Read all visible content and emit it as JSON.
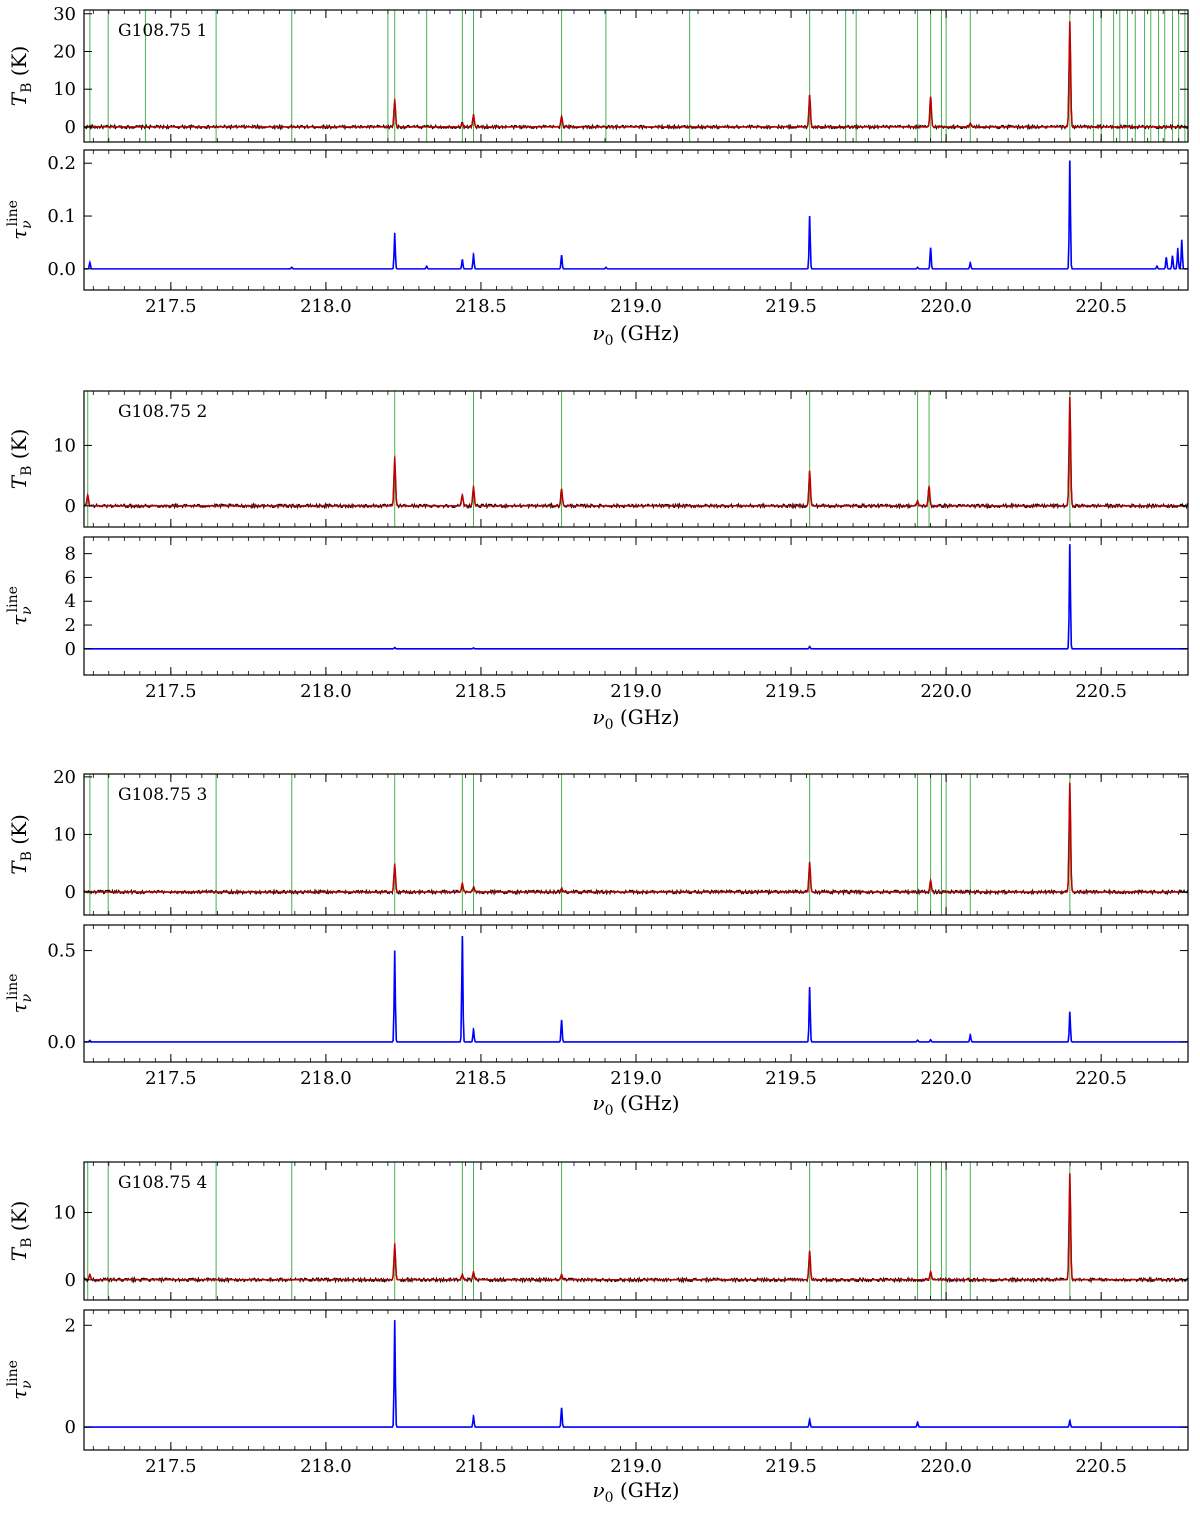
{
  "figure": {
    "x_axis_label": "ν0 (GHz)",
    "x_ticks": [
      217.5,
      218.0,
      218.5,
      219.0,
      219.5,
      220.0,
      220.5
    ],
    "x_tick_labels": [
      "217.5",
      "218.0",
      "218.5",
      "219.0",
      "219.5",
      "220.0",
      "220.5"
    ],
    "xlim": [
      217.22,
      220.78
    ],
    "tb_ylabel": "TB (K)",
    "tau_ylabel": "τν line",
    "colors": {
      "observed": "#000000",
      "model": "#c00000",
      "tau": "#0000ff",
      "line_marker": "#4caf50"
    }
  },
  "chart_data": [
    {
      "type": "line",
      "panel_label": "G108.75 1",
      "tb": {
        "ylim": [
          -4,
          31
        ],
        "y_ticks": [
          0,
          10,
          20,
          30
        ],
        "y_tick_labels": [
          "0",
          "10",
          "20",
          "30"
        ],
        "peaks": [
          [
            218.222,
            7.2
          ],
          [
            218.44,
            1.0
          ],
          [
            218.476,
            3.2
          ],
          [
            218.76,
            2.8
          ],
          [
            219.56,
            8.5
          ],
          [
            219.95,
            8.0
          ],
          [
            220.078,
            1.0
          ],
          [
            220.399,
            28.0
          ]
        ]
      },
      "tau": {
        "ylim": [
          -0.04,
          0.225
        ],
        "y_ticks": [
          0.0,
          0.1,
          0.2
        ],
        "y_tick_labels": [
          "0.0",
          "0.1",
          "0.2"
        ],
        "peaks": [
          [
            217.239,
            0.012
          ],
          [
            217.89,
            0.003
          ],
          [
            218.222,
            0.068
          ],
          [
            218.325,
            0.005
          ],
          [
            218.44,
            0.018
          ],
          [
            218.476,
            0.028
          ],
          [
            218.76,
            0.026
          ],
          [
            218.903,
            0.003
          ],
          [
            219.56,
            0.1
          ],
          [
            219.908,
            0.003
          ],
          [
            219.95,
            0.04
          ],
          [
            220.078,
            0.012
          ],
          [
            220.399,
            0.205
          ],
          [
            220.68,
            0.005
          ],
          [
            220.71,
            0.022
          ],
          [
            220.73,
            0.025
          ],
          [
            220.747,
            0.038
          ],
          [
            220.76,
            0.055
          ]
        ]
      },
      "line_markers": [
        217.239,
        217.298,
        217.418,
        217.646,
        217.89,
        218.2,
        218.222,
        218.325,
        218.44,
        218.476,
        218.76,
        218.903,
        219.173,
        219.56,
        219.676,
        219.71,
        219.908,
        219.95,
        219.985,
        220.0,
        220.078,
        220.399,
        220.475,
        220.5,
        220.54,
        220.56,
        220.585,
        220.61,
        220.64,
        220.66,
        220.685,
        220.705,
        220.73,
        220.75,
        220.77
      ]
    },
    {
      "type": "line",
      "panel_label": "G108.75 2",
      "tb": {
        "ylim": [
          -3.5,
          19
        ],
        "y_ticks": [
          0,
          10
        ],
        "y_tick_labels": [
          "0",
          "10"
        ],
        "peaks": [
          [
            217.232,
            1.8
          ],
          [
            218.222,
            8.0
          ],
          [
            218.44,
            1.8
          ],
          [
            218.476,
            3.2
          ],
          [
            218.76,
            2.8
          ],
          [
            219.56,
            5.8
          ],
          [
            219.908,
            0.8
          ],
          [
            219.945,
            3.2
          ],
          [
            220.399,
            18.0
          ]
        ]
      },
      "tau": {
        "ylim": [
          -2.2,
          9.4
        ],
        "y_ticks": [
          0,
          2,
          4,
          6,
          8
        ],
        "y_tick_labels": [
          "0",
          "2",
          "4",
          "6",
          "8"
        ],
        "peaks": [
          [
            218.222,
            0.12
          ],
          [
            218.476,
            0.08
          ],
          [
            219.56,
            0.2
          ],
          [
            220.399,
            8.8
          ]
        ]
      },
      "line_markers": [
        217.232,
        218.222,
        218.476,
        218.76,
        219.56,
        219.908,
        219.945,
        220.399
      ]
    },
    {
      "type": "line",
      "panel_label": "G108.75 3",
      "tb": {
        "ylim": [
          -4,
          20.5
        ],
        "y_ticks": [
          0,
          10,
          20
        ],
        "y_tick_labels": [
          "0",
          "10",
          "20"
        ],
        "peaks": [
          [
            218.222,
            4.8
          ],
          [
            218.44,
            1.5
          ],
          [
            218.476,
            0.8
          ],
          [
            218.76,
            0.6
          ],
          [
            219.56,
            5.2
          ],
          [
            219.95,
            2.0
          ],
          [
            220.399,
            19.0
          ]
        ]
      },
      "tau": {
        "ylim": [
          -0.11,
          0.64
        ],
        "y_ticks": [
          0.0,
          0.5
        ],
        "y_tick_labels": [
          "0.0",
          "0.5"
        ],
        "peaks": [
          [
            217.239,
            0.008
          ],
          [
            218.222,
            0.5
          ],
          [
            218.44,
            0.58
          ],
          [
            218.476,
            0.07
          ],
          [
            218.76,
            0.12
          ],
          [
            219.56,
            0.3
          ],
          [
            219.908,
            0.01
          ],
          [
            219.95,
            0.012
          ],
          [
            220.078,
            0.04
          ],
          [
            220.399,
            0.165
          ]
        ]
      },
      "line_markers": [
        217.239,
        217.298,
        217.646,
        217.89,
        218.222,
        218.44,
        218.476,
        218.76,
        219.56,
        219.908,
        219.95,
        219.985,
        220.0,
        220.078,
        220.399
      ]
    },
    {
      "type": "line",
      "panel_label": "G108.75 4",
      "tb": {
        "ylim": [
          -3,
          17.5
        ],
        "y_ticks": [
          0,
          10
        ],
        "y_tick_labels": [
          "0",
          "10"
        ],
        "peaks": [
          [
            217.239,
            0.8
          ],
          [
            218.222,
            5.3
          ],
          [
            218.44,
            0.8
          ],
          [
            218.476,
            1.2
          ],
          [
            218.76,
            0.8
          ],
          [
            219.56,
            4.3
          ],
          [
            219.95,
            1.2
          ],
          [
            220.399,
            15.8
          ]
        ]
      },
      "tau": {
        "ylim": [
          -0.45,
          2.3
        ],
        "y_ticks": [
          0,
          2
        ],
        "y_tick_labels": [
          "0",
          "2"
        ],
        "peaks": [
          [
            218.222,
            2.1
          ],
          [
            218.476,
            0.22
          ],
          [
            218.76,
            0.38
          ],
          [
            219.56,
            0.15
          ],
          [
            219.908,
            0.1
          ],
          [
            220.399,
            0.13
          ]
        ]
      },
      "line_markers": [
        217.232,
        217.298,
        217.646,
        217.89,
        218.222,
        218.44,
        218.476,
        218.76,
        219.56,
        219.908,
        219.95,
        219.985,
        220.0,
        220.078,
        220.399
      ]
    }
  ]
}
